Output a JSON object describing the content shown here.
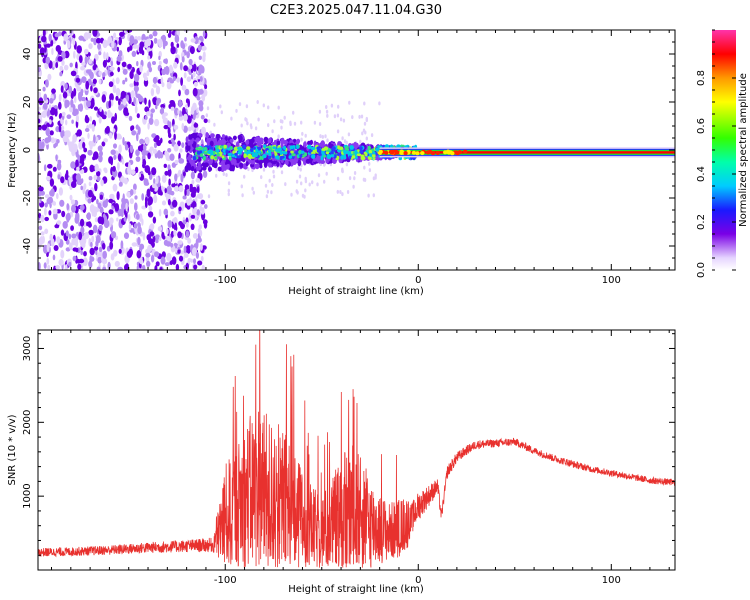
{
  "title": "C2E3.2025.047.11.04.G30",
  "colors": {
    "snr_line": "#e8312e",
    "signal_core": "#ff0000",
    "background": "#ffffff",
    "axis": "#000000"
  },
  "chart_data": [
    {
      "type": "heatmap",
      "title": "C2E3.2025.047.11.04.G30",
      "xlabel": "Height of straight line (km)",
      "ylabel": "Frequency (Hz)",
      "xlim": [
        -197,
        133
      ],
      "ylim": [
        -50,
        50
      ],
      "x_ticks": [
        -100,
        0,
        100
      ],
      "y_ticks": [
        -40,
        -20,
        0,
        20,
        40
      ],
      "colorbar": {
        "label": "Normalized spectral amplitude",
        "range": [
          0,
          1
        ],
        "ticks": [
          "0.0",
          "0.2",
          "0.4",
          "0.6",
          "0.8"
        ],
        "colormap": "rainbow"
      },
      "features": {
        "noise_region_x": [
          -197,
          -110
        ],
        "noise_freq_range": [
          -50,
          50
        ],
        "signal_band_center_hz": -1,
        "tracking_start_x": -120,
        "strong_signal_start_x": -20
      }
    },
    {
      "type": "line",
      "xlabel": "Height of straight line (km)",
      "ylabel": "SNR (10 * v/v)",
      "xlim": [
        -197,
        133
      ],
      "ylim": [
        0,
        3250
      ],
      "x_ticks": [
        -100,
        0,
        100
      ],
      "y_ticks": [
        1000,
        2000,
        3000
      ],
      "envelope": {
        "x": [
          -197,
          -180,
          -160,
          -140,
          -120,
          -106,
          -100,
          -95,
          -90,
          -85,
          -82,
          -80,
          -75,
          -70,
          -65,
          -60,
          -55,
          -50,
          -45,
          -40,
          -35,
          -32,
          -30,
          -25,
          -20,
          -15,
          -10,
          -5,
          0,
          5,
          10,
          12,
          15,
          20,
          25,
          30,
          40,
          50,
          60,
          70,
          80,
          90,
          100,
          110,
          120,
          133
        ],
        "base": [
          220,
          230,
          250,
          280,
          300,
          310,
          500,
          600,
          700,
          750,
          800,
          700,
          650,
          600,
          500,
          450,
          400,
          350,
          400,
          450,
          500,
          550,
          500,
          450,
          420,
          400,
          450,
          550,
          800,
          950,
          1100,
          700,
          1300,
          1500,
          1600,
          1680,
          1700,
          1720,
          1600,
          1500,
          1420,
          1350,
          1300,
          1250,
          1200,
          1170
        ],
        "spread": [
          120,
          120,
          130,
          150,
          170,
          200,
          900,
          1000,
          1200,
          1400,
          1500,
          1400,
          1300,
          1300,
          1100,
          900,
          700,
          650,
          800,
          1100,
          1200,
          1100,
          1000,
          800,
          600,
          500,
          500,
          450,
          400,
          300,
          220,
          150,
          180,
          150,
          130,
          120,
          110,
          110,
          100,
          100,
          100,
          90,
          90,
          90,
          90,
          90
        ]
      }
    }
  ]
}
